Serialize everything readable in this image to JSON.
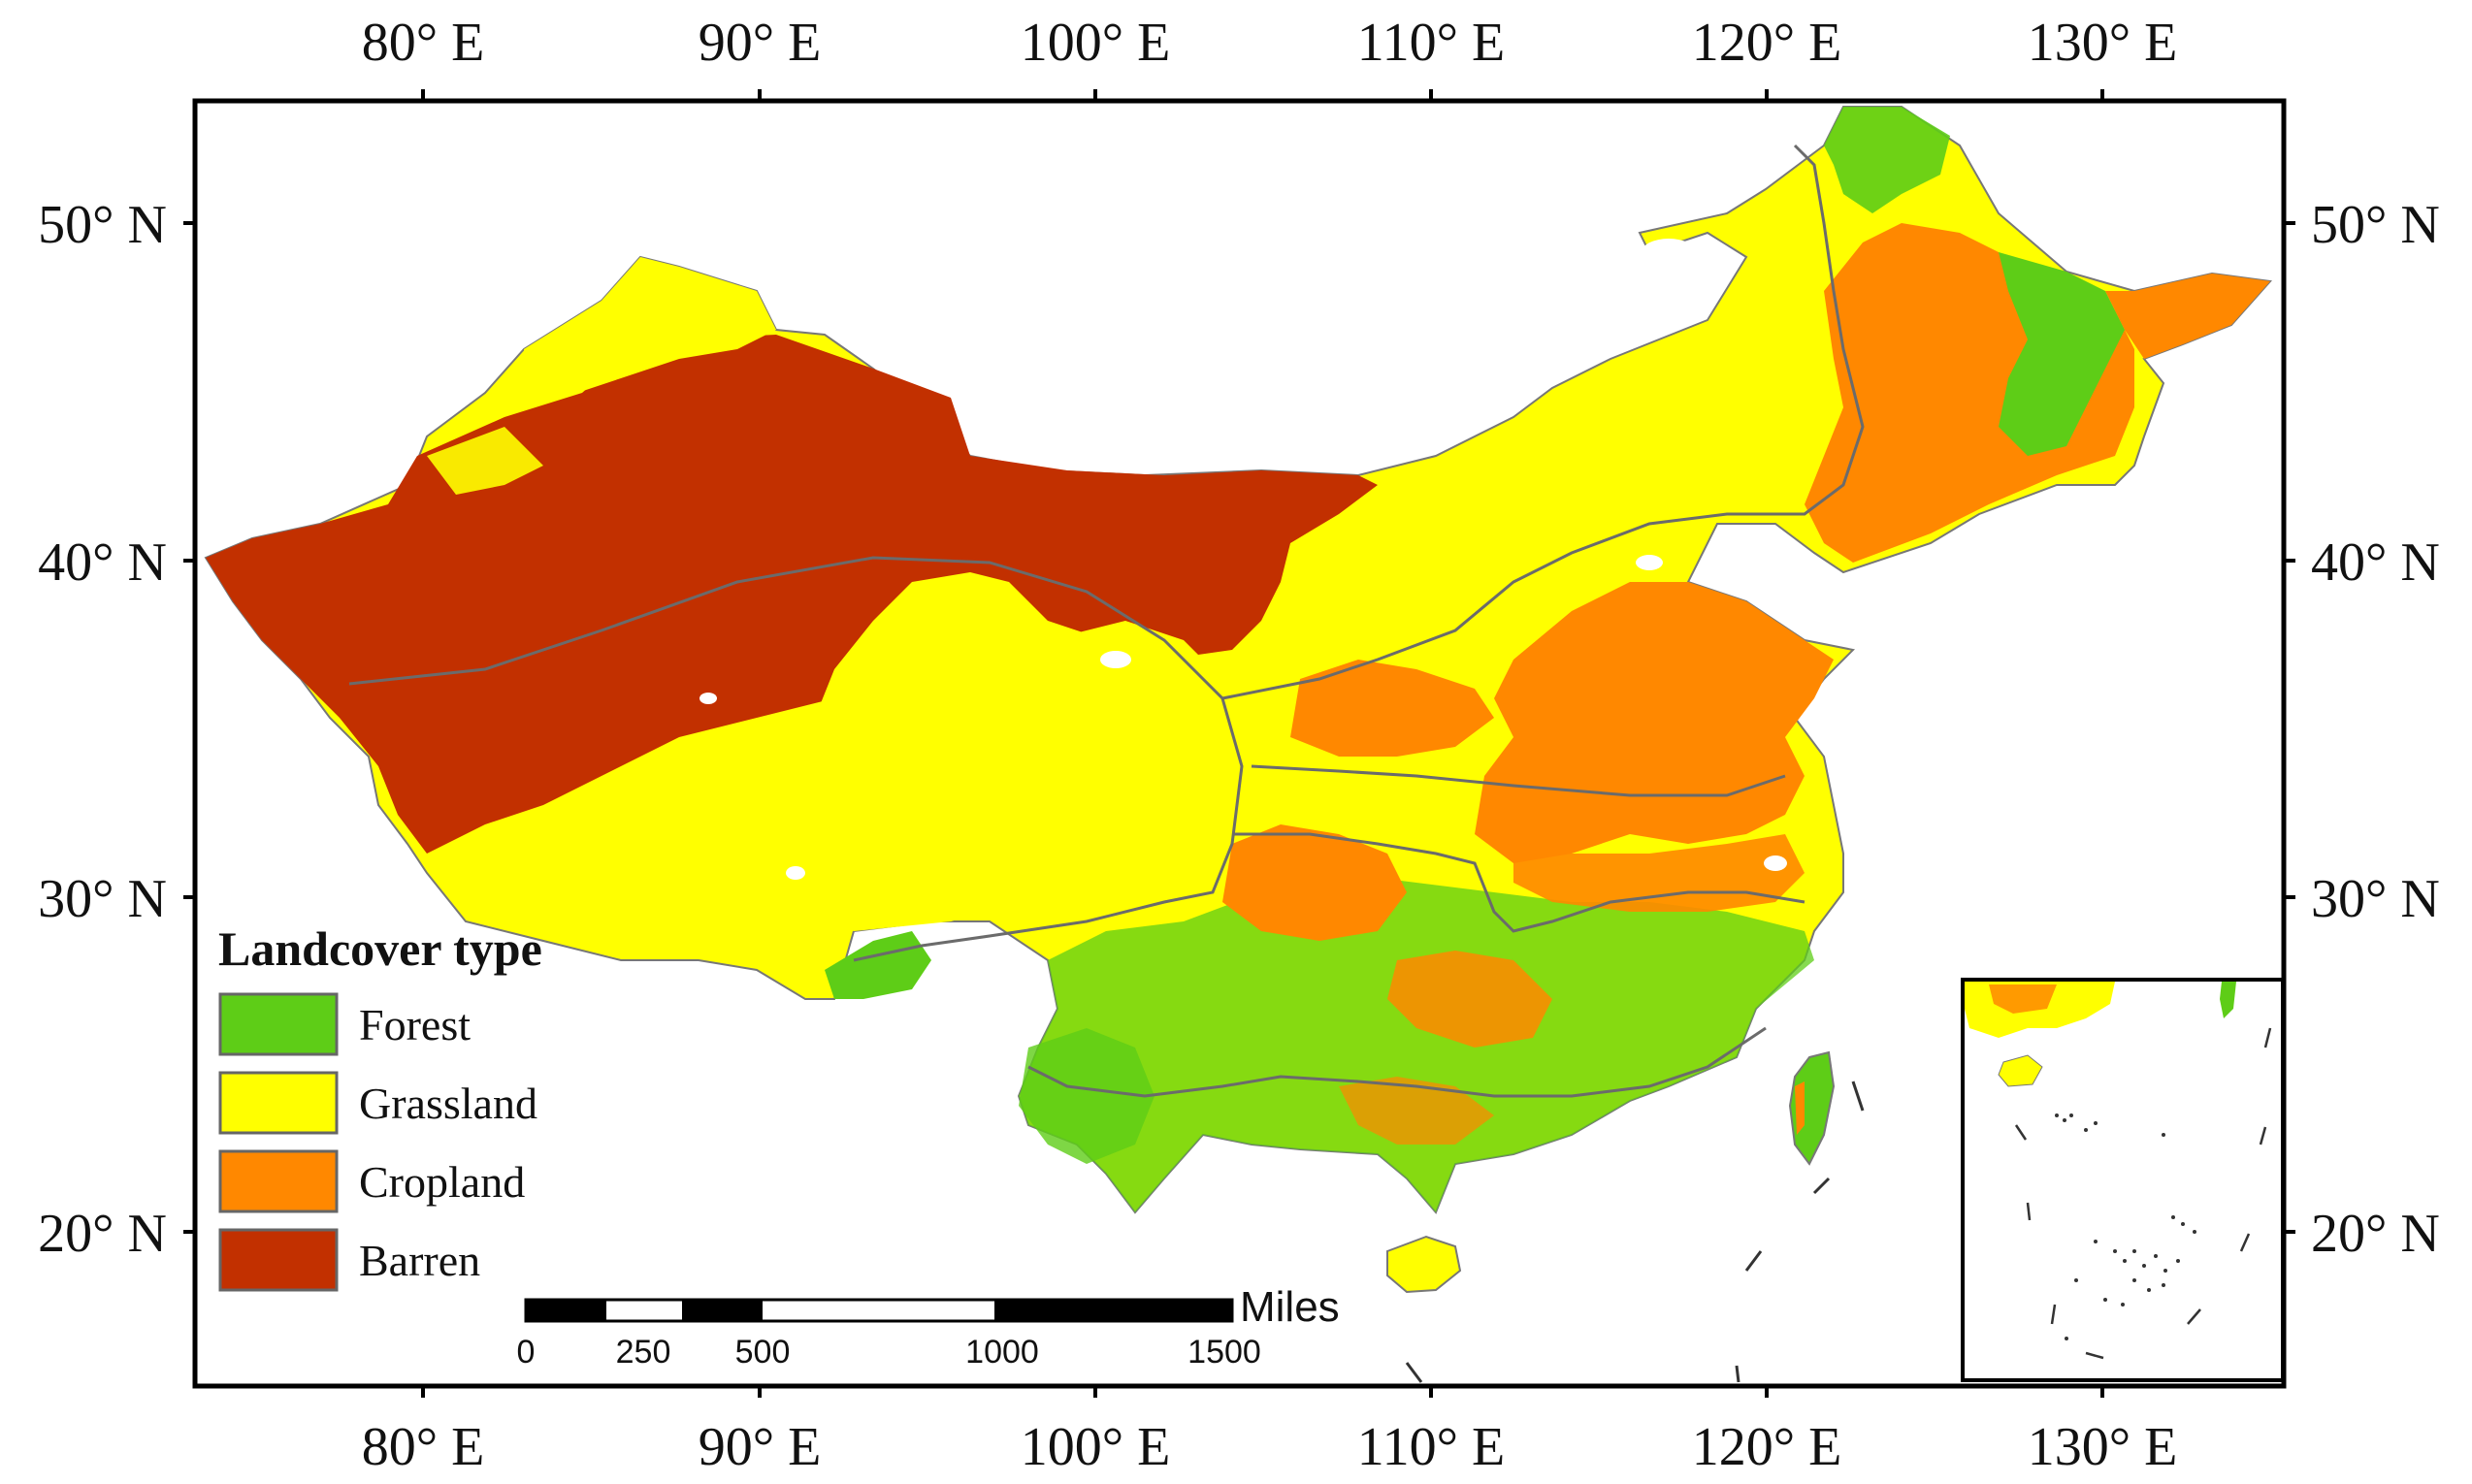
{
  "colors": {
    "forest": "#5ecd17",
    "grassland": "#ffff00",
    "cropland": "#ff8800",
    "barren": "#c23000",
    "boundary": "#6b6b6b",
    "frame": "#000000"
  },
  "axes": {
    "top": [
      "80° E",
      "90° E",
      "100° E",
      "110° E",
      "120° E",
      "130° E"
    ],
    "bottom": [
      "80° E",
      "90° E",
      "100° E",
      "110° E",
      "120° E",
      "130° E"
    ],
    "left": [
      "50° N",
      "40° N",
      "30° N",
      "20° N"
    ],
    "right": [
      "50° N",
      "40° N",
      "30° N",
      "20° N"
    ]
  },
  "legend": {
    "title": "Landcover type",
    "items": [
      {
        "label": "Forest",
        "color": "#5ecd17"
      },
      {
        "label": "Grassland",
        "color": "#ffff00"
      },
      {
        "label": "Cropland",
        "color": "#ff8800"
      },
      {
        "label": "Barren",
        "color": "#c23000"
      }
    ]
  },
  "scale_bar": {
    "unit": "Miles",
    "ticks": [
      "0",
      "250",
      "500",
      "1000",
      "1500"
    ]
  }
}
